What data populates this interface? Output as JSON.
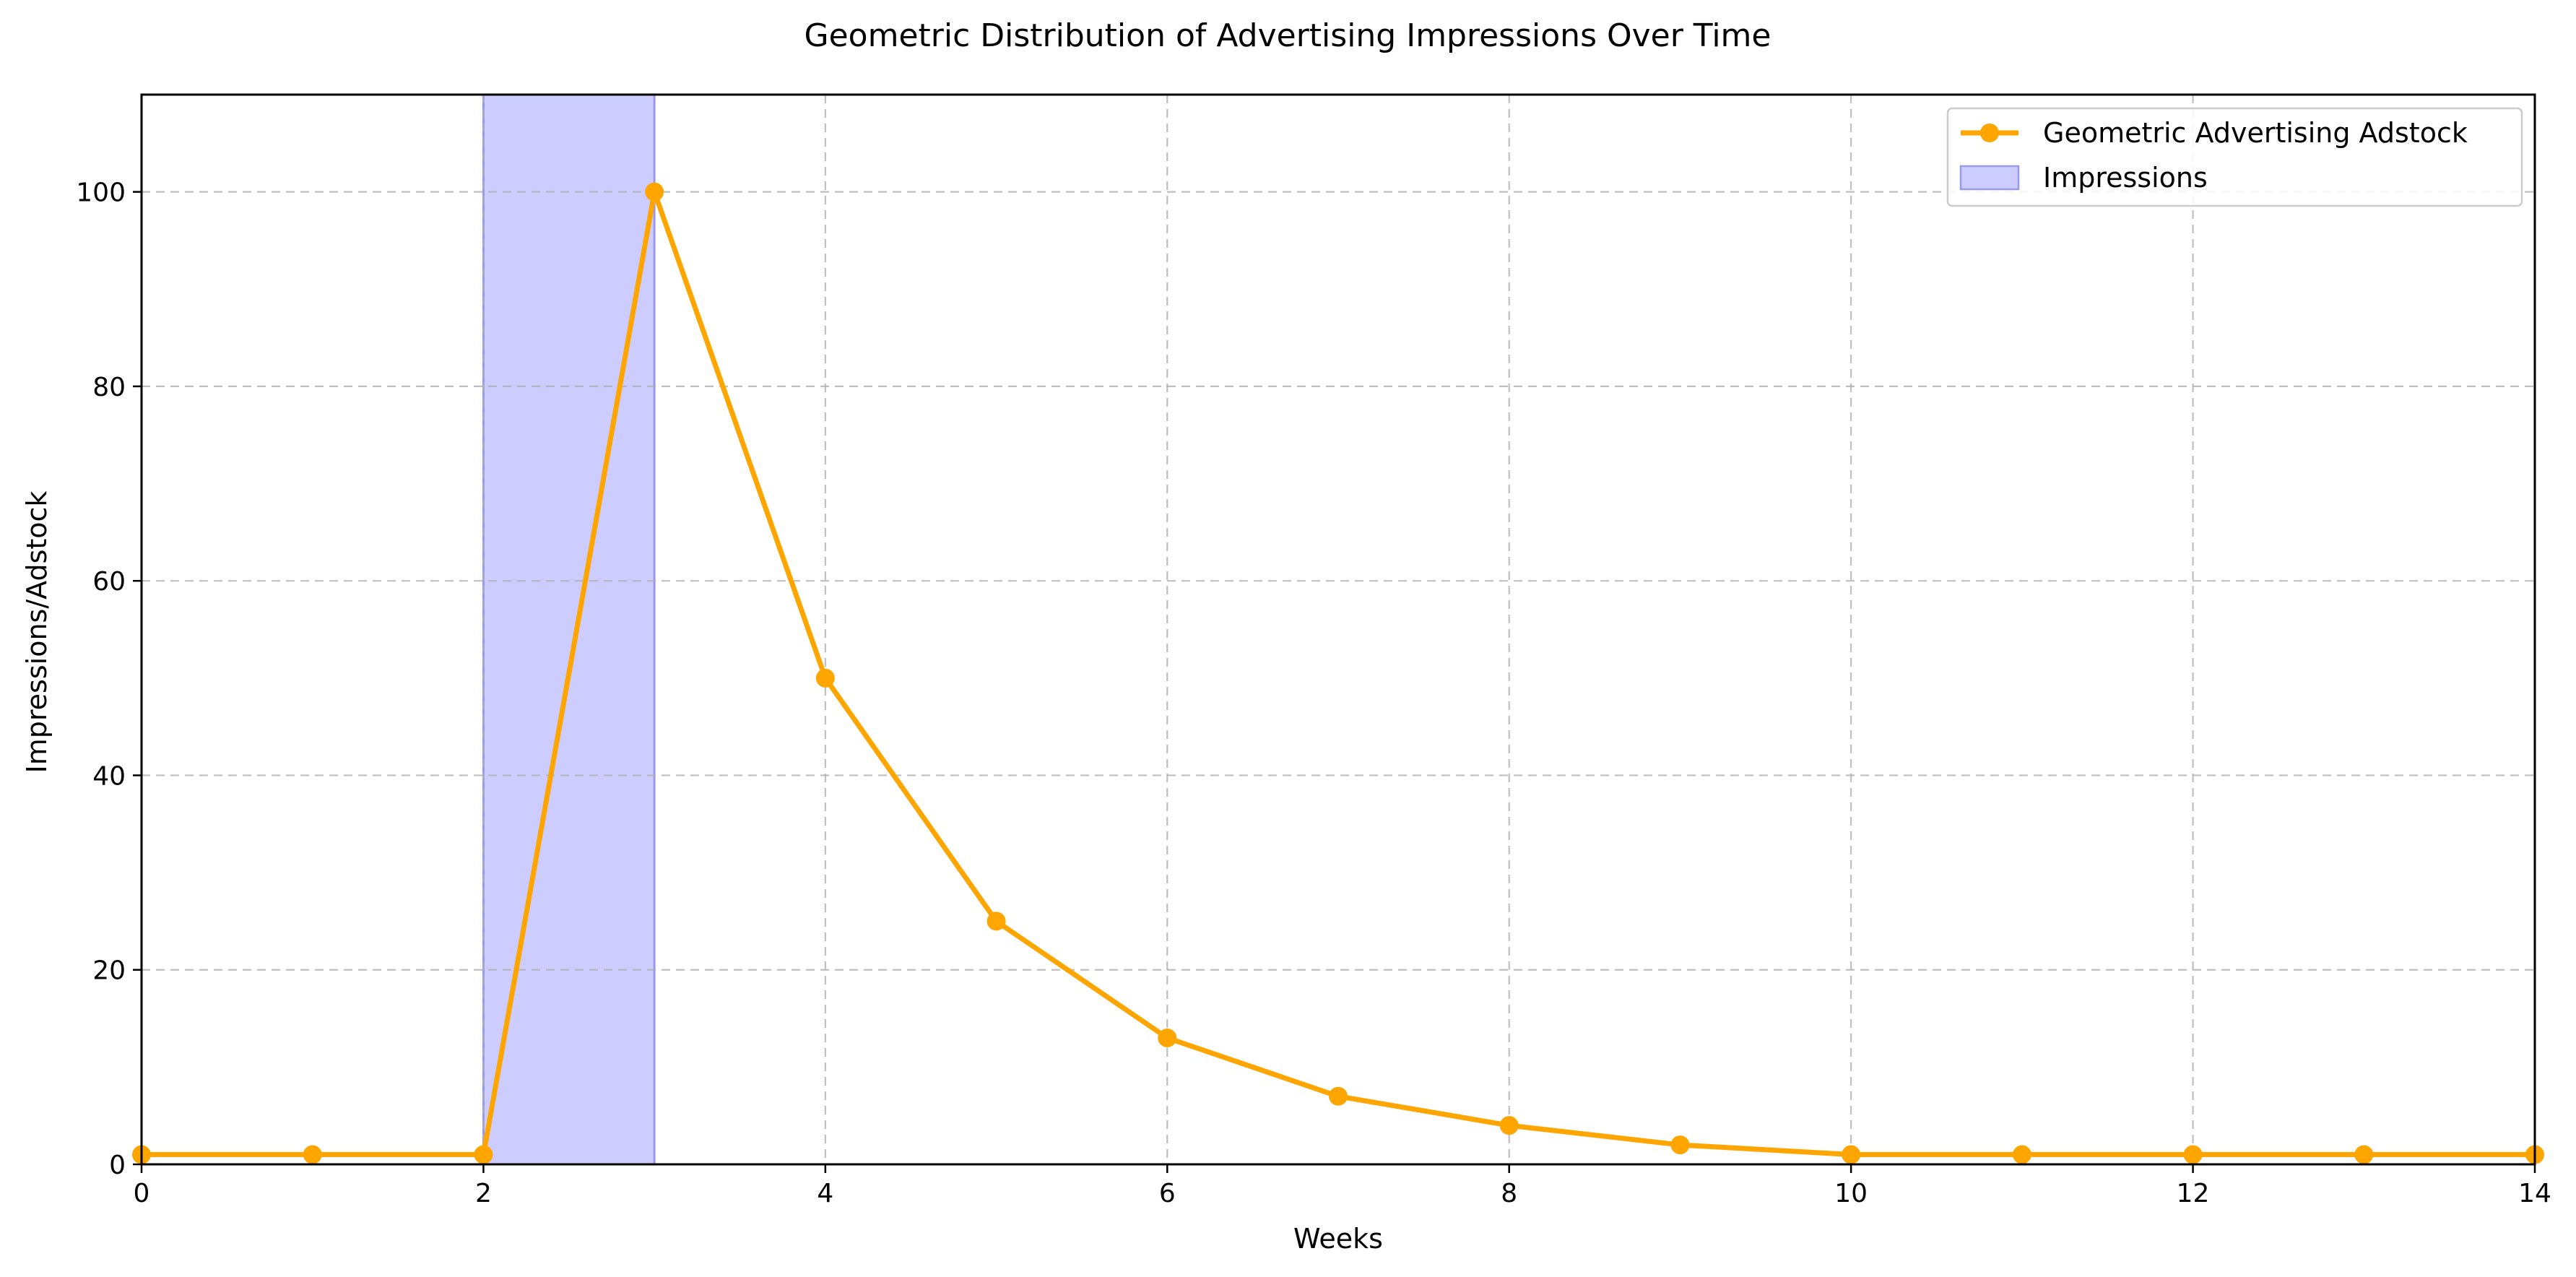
{
  "chart_data": {
    "type": "line",
    "title": "Geometric Distribution of Advertising Impressions Over Time",
    "xlabel": "Weeks",
    "ylabel": "Impressions/Adstock",
    "xlim": [
      0,
      14
    ],
    "ylim": [
      0,
      110
    ],
    "x_ticks": [
      "0",
      "2",
      "4",
      "6",
      "8",
      "10",
      "12",
      "14"
    ],
    "y_ticks": [
      "0",
      "20",
      "40",
      "60",
      "80",
      "100"
    ],
    "grid": true,
    "legend_position": "top-right",
    "series": [
      {
        "name": "Geometric Advertising Adstock",
        "kind": "line-with-markers",
        "color": "#FFA500",
        "x": [
          0,
          1,
          2,
          3,
          4,
          5,
          6,
          7,
          8,
          9,
          10,
          11,
          12,
          13,
          14
        ],
        "y": [
          1,
          1,
          1,
          100,
          50,
          25,
          13,
          7,
          4,
          2,
          1,
          1,
          1,
          1,
          1
        ]
      },
      {
        "name": "Impressions",
        "kind": "shaded-span",
        "color": "#CCCCFF",
        "x_start": 2,
        "x_end": 3
      }
    ]
  }
}
